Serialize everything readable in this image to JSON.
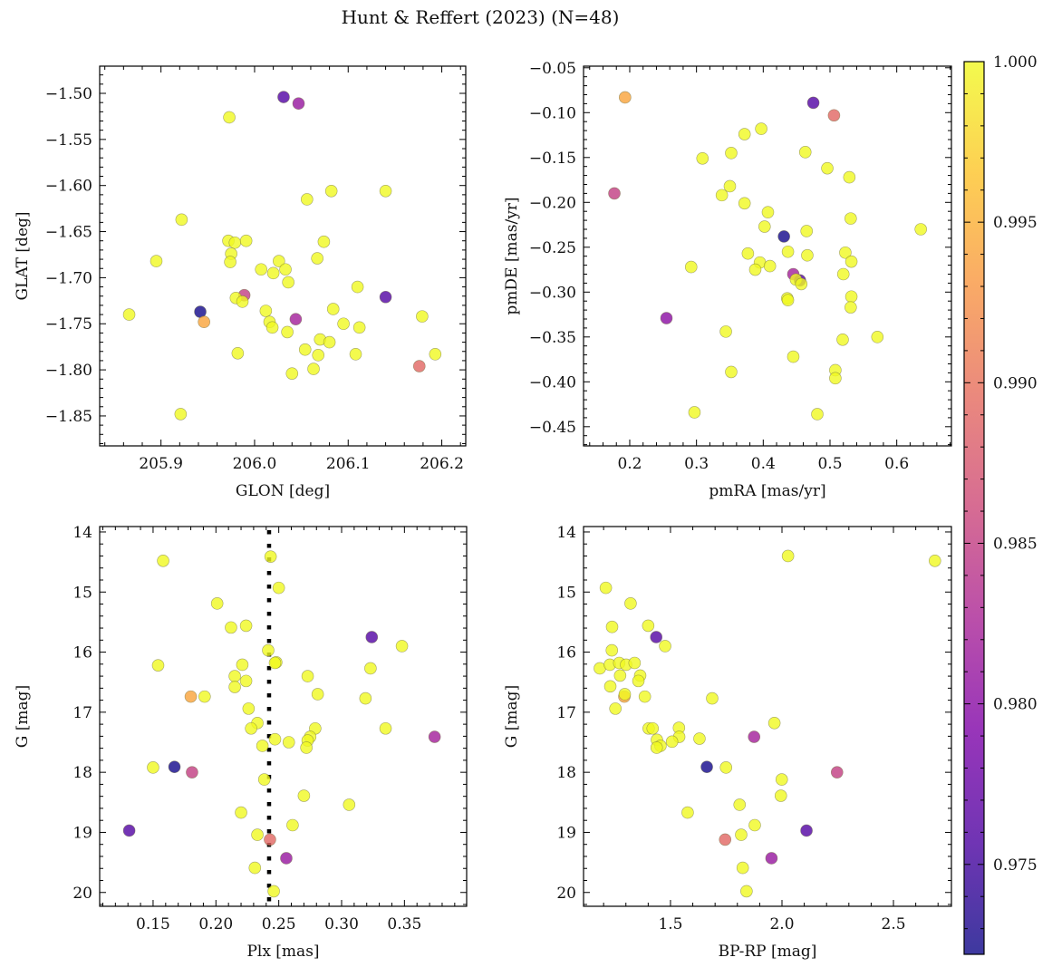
{
  "title": "Hunt & Reffert (2023) (N=48)",
  "colorbar": {
    "cmap": "plasma",
    "vmin": 0.9722,
    "vmax": 1.0,
    "ticks": [
      0.975,
      0.98,
      0.985,
      0.99,
      0.995,
      1.0
    ],
    "tick_labels": [
      "0.975",
      "0.980",
      "0.985",
      "0.990",
      "0.995",
      "1.000"
    ]
  },
  "chart_data": [
    {
      "type": "scatter",
      "xlabel": "GLON [deg]",
      "ylabel": "GLAT [deg]",
      "xlim": [
        205.8345,
        206.2256
      ],
      "ylim": [
        -1.8825,
        -1.4705
      ],
      "xticks": [
        205.9,
        206.0,
        206.1,
        206.2
      ],
      "xtick_labels": [
        "205.9",
        "206.0",
        "206.1",
        "206.2"
      ],
      "yticks": [
        -1.5,
        -1.55,
        -1.6,
        -1.65,
        -1.7,
        -1.75,
        -1.8,
        -1.85
      ],
      "ytick_labels": [
        "−1.50",
        "−1.55",
        "−1.60",
        "−1.65",
        "−1.70",
        "−1.75",
        "−1.80",
        "−1.85"
      ],
      "x": [
        206.031,
        206.047,
        205.973,
        206.082,
        206.14,
        206.056,
        205.922,
        205.972,
        205.979,
        205.991,
        206.074,
        205.975,
        205.895,
        205.974,
        206.067,
        206.026,
        206.007,
        206.02,
        206.033,
        206.036,
        206.11,
        205.989,
        205.98,
        205.987,
        206.14,
        205.866,
        205.942,
        205.946,
        206.012,
        206.016,
        206.019,
        206.044,
        206.095,
        206.112,
        206.084,
        206.179,
        206.035,
        206.07,
        206.08,
        206.054,
        206.068,
        206.108,
        206.193,
        205.982,
        206.176,
        206.04,
        206.063,
        205.921
      ],
      "y": [
        -1.504,
        -1.511,
        -1.526,
        -1.606,
        -1.606,
        -1.615,
        -1.637,
        -1.66,
        -1.662,
        -1.66,
        -1.661,
        -1.674,
        -1.682,
        -1.683,
        -1.679,
        -1.682,
        -1.691,
        -1.695,
        -1.691,
        -1.705,
        -1.71,
        -1.719,
        -1.722,
        -1.726,
        -1.721,
        -1.74,
        -1.737,
        -1.748,
        -1.736,
        -1.748,
        -1.754,
        -1.745,
        -1.75,
        -1.754,
        -1.734,
        -1.742,
        -1.759,
        -1.767,
        -1.77,
        -1.778,
        -1.784,
        -1.783,
        -1.783,
        -1.782,
        -1.796,
        -1.804,
        -1.799,
        -1.848
      ],
      "c": [
        0.976,
        0.981,
        1,
        1,
        1,
        1,
        1,
        1,
        1,
        1,
        1,
        1,
        1,
        1,
        1,
        1,
        1,
        1,
        1,
        1,
        1,
        0.985,
        1,
        1,
        0.976,
        1,
        0.9725,
        0.994,
        1,
        1,
        1,
        0.982,
        1,
        1,
        1,
        1,
        1,
        1,
        1,
        1,
        1,
        1,
        1,
        1,
        0.989,
        1,
        1,
        1
      ]
    },
    {
      "type": "scatter",
      "xlabel": "pmRA [mas/yr]",
      "ylabel": "pmDE [mas/yr]",
      "xlim": [
        0.1308,
        0.6819
      ],
      "ylim": [
        -0.4714,
        -0.0482
      ],
      "xticks": [
        0.2,
        0.3,
        0.4,
        0.5,
        0.6
      ],
      "xtick_labels": [
        "0.2",
        "0.3",
        "0.4",
        "0.5",
        "0.6"
      ],
      "yticks": [
        -0.05,
        -0.1,
        -0.15,
        -0.2,
        -0.25,
        -0.3,
        -0.35,
        -0.4,
        -0.45
      ],
      "ytick_labels": [
        "−0.05",
        "−0.10",
        "−0.15",
        "−0.20",
        "−0.25",
        "−0.30",
        "−0.35",
        "−0.40",
        "−0.45"
      ],
      "x": [
        0.193,
        0.475,
        0.506,
        0.397,
        0.372,
        0.352,
        0.463,
        0.309,
        0.496,
        0.529,
        0.177,
        0.35,
        0.338,
        0.372,
        0.407,
        0.402,
        0.531,
        0.636,
        0.431,
        0.465,
        0.377,
        0.437,
        0.466,
        0.523,
        0.532,
        0.395,
        0.41,
        0.388,
        0.292,
        0.52,
        0.445,
        0.455,
        0.449,
        0.457,
        0.436,
        0.437,
        0.532,
        0.531,
        0.255,
        0.344,
        0.571,
        0.519,
        0.445,
        0.352,
        0.508,
        0.508,
        0.297,
        0.481
      ],
      "y": [
        -0.083,
        -0.089,
        -0.103,
        -0.118,
        -0.124,
        -0.145,
        -0.144,
        -0.151,
        -0.162,
        -0.172,
        -0.19,
        -0.182,
        -0.192,
        -0.201,
        -0.211,
        -0.227,
        -0.218,
        -0.23,
        -0.238,
        -0.232,
        -0.257,
        -0.255,
        -0.259,
        -0.256,
        -0.266,
        -0.267,
        -0.271,
        -0.275,
        -0.272,
        -0.28,
        -0.28,
        -0.287,
        -0.286,
        -0.291,
        -0.307,
        -0.309,
        -0.305,
        -0.317,
        -0.329,
        -0.344,
        -0.35,
        -0.353,
        -0.372,
        -0.389,
        -0.387,
        -0.396,
        -0.434,
        -0.436
      ],
      "c": [
        0.994,
        0.976,
        0.989,
        1,
        1,
        1,
        1,
        1,
        1,
        1,
        0.985,
        1,
        1,
        1,
        1,
        1,
        1,
        1,
        0.9725,
        1,
        1,
        1,
        1,
        1,
        1,
        1,
        1,
        1,
        1,
        1,
        0.982,
        0.976,
        1,
        1,
        1,
        1,
        1,
        1,
        0.98,
        1,
        1,
        1,
        1,
        1,
        1,
        1,
        1,
        1
      ]
    },
    {
      "type": "scatter",
      "xlabel": "Plx [mas]",
      "ylabel": "G [mag]",
      "xlim": [
        0.1075,
        0.3995
      ],
      "ylim": [
        20.23,
        13.91
      ],
      "y_inverted": true,
      "reference_line": {
        "orientation": "vertical",
        "x": 0.2423,
        "style": "dotted",
        "color": "#000000"
      },
      "xticks": [
        0.15,
        0.2,
        0.25,
        0.3,
        0.35
      ],
      "xtick_labels": [
        "0.15",
        "0.20",
        "0.25",
        "0.30",
        "0.35"
      ],
      "yticks": [
        14,
        15,
        16,
        17,
        18,
        19,
        20
      ],
      "ytick_labels": [
        "14",
        "15",
        "16",
        "17",
        "18",
        "19",
        "20"
      ],
      "x": [
        0.158,
        0.2435,
        0.25,
        0.201,
        0.212,
        0.224,
        0.324,
        0.348,
        0.2416,
        0.154,
        0.221,
        0.248,
        0.215,
        0.224,
        0.273,
        0.323,
        0.215,
        0.18,
        0.191,
        0.281,
        0.319,
        0.226,
        0.233,
        0.228,
        0.335,
        0.374,
        0.247,
        0.258,
        0.279,
        0.275,
        0.273,
        0.272,
        0.237,
        0.15,
        0.167,
        0.181,
        0.2385,
        0.27,
        0.306,
        0.22,
        0.261,
        0.131,
        0.233,
        0.243,
        0.256,
        0.231,
        0.246,
        0.247
      ],
      "y": [
        14.48,
        14.41,
        14.93,
        15.19,
        15.59,
        15.56,
        15.75,
        15.9,
        15.97,
        16.22,
        16.21,
        16.17,
        16.4,
        16.48,
        16.4,
        16.27,
        16.58,
        16.74,
        16.74,
        16.7,
        16.77,
        16.94,
        17.18,
        17.27,
        17.27,
        17.41,
        17.45,
        17.5,
        17.27,
        17.41,
        17.47,
        17.59,
        17.56,
        17.92,
        17.91,
        18.0,
        18.12,
        18.39,
        18.54,
        18.67,
        18.88,
        18.97,
        19.04,
        19.12,
        19.43,
        19.59,
        19.98,
        16.18
      ],
      "c": [
        1,
        1,
        1,
        1,
        1,
        1,
        0.976,
        1,
        1,
        1,
        1,
        1,
        1,
        1,
        1,
        1,
        1,
        0.994,
        1,
        1,
        1,
        1,
        1,
        1,
        1,
        0.982,
        1,
        1,
        1,
        1,
        1,
        1,
        1,
        1,
        0.9725,
        0.985,
        1,
        1,
        1,
        1,
        1,
        0.976,
        1,
        0.989,
        0.981,
        1,
        1,
        1
      ]
    },
    {
      "type": "scatter",
      "xlabel": "BP-RP [mag]",
      "ylabel": "G [mag]",
      "xlim": [
        1.11,
        2.76
      ],
      "ylim": [
        20.23,
        13.91
      ],
      "y_inverted": true,
      "xticks": [
        1.5,
        2.0,
        2.5
      ],
      "xtick_labels": [
        "1.5",
        "2.0",
        "2.5"
      ],
      "yticks": [
        14,
        15,
        16,
        17,
        18,
        19,
        20
      ],
      "ytick_labels": [
        "14",
        "15",
        "16",
        "17",
        "18",
        "19",
        "20"
      ],
      "x": [
        2.027,
        2.686,
        1.21,
        1.321,
        1.238,
        1.4,
        1.436,
        1.476,
        1.237,
        1.183,
        1.228,
        1.27,
        1.301,
        1.339,
        1.274,
        1.364,
        1.356,
        1.23,
        1.293,
        1.295,
        1.385,
        1.687,
        1.253,
        1.966,
        1.402,
        1.42,
        1.538,
        1.539,
        1.875,
        1.439,
        1.455,
        1.438,
        1.507,
        1.63,
        1.663,
        1.749,
        2.247,
        1.999,
        1.995,
        1.81,
        1.577,
        1.878,
        2.11,
        1.817,
        1.745,
        1.953,
        1.824,
        1.841
      ],
      "y": [
        14.4,
        14.48,
        14.93,
        15.19,
        15.58,
        15.56,
        15.75,
        15.9,
        15.97,
        16.27,
        16.21,
        16.18,
        16.21,
        16.18,
        16.39,
        16.39,
        16.48,
        16.57,
        16.74,
        16.7,
        16.74,
        16.77,
        16.94,
        17.18,
        17.27,
        17.27,
        17.26,
        17.41,
        17.41,
        17.46,
        17.56,
        17.59,
        17.49,
        17.44,
        17.91,
        17.92,
        18.0,
        18.12,
        18.39,
        18.54,
        18.67,
        18.88,
        18.97,
        19.04,
        19.12,
        19.43,
        19.59,
        19.98
      ],
      "c": [
        1,
        1,
        1,
        1,
        1,
        1,
        0.976,
        1,
        1,
        1,
        1,
        1,
        1,
        1,
        1,
        1,
        1,
        1,
        0.994,
        1,
        1,
        1,
        1,
        1,
        1,
        1,
        1,
        1,
        0.982,
        1,
        1,
        1,
        1,
        1,
        0.9725,
        1,
        0.985,
        1,
        1,
        1,
        1,
        1,
        0.976,
        1,
        0.989,
        0.981,
        1,
        1
      ]
    }
  ]
}
